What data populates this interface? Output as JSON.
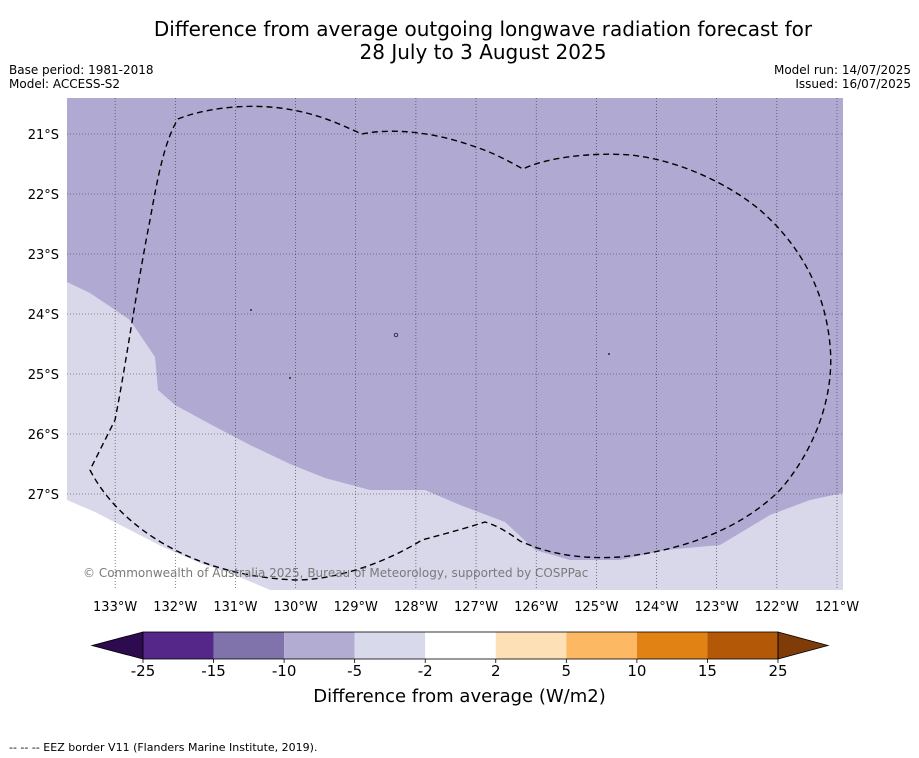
{
  "title_line1": "Difference from average outgoing longwave radiation forecast for",
  "title_line2": "28 July to 3 August 2025",
  "meta_left": {
    "base_period": "Base period: 1981-2018",
    "model": "Model: ACCESS-S2"
  },
  "meta_right": {
    "model_run": "Model run: 14/07/2025",
    "issued": "Issued: 16/07/2025"
  },
  "map": {
    "lon_range": [
      -133.8,
      -120.9
    ],
    "lat_range": [
      -28.6,
      -20.4
    ],
    "lon_ticks": [
      "133°W",
      "132°W",
      "131°W",
      "130°W",
      "129°W",
      "128°W",
      "127°W",
      "126°W",
      "125°W",
      "124°W",
      "123°W",
      "122°W",
      "121°W"
    ],
    "lat_ticks": [
      "21°S",
      "22°S",
      "23°S",
      "24°S",
      "25°S",
      "26°S",
      "27°S"
    ],
    "grid": true,
    "anomaly_fill_colors": {
      "minus_10_to_minus_5": "#b0aad2",
      "minus_5_to_minus_2": "#d8d8ea"
    },
    "eez_border_style": "dashed",
    "copyright": "© Commonwealth of Australia 2025, Bureau of Meteorology, supported by COSPPac"
  },
  "colorbar": {
    "ticks": [
      "-25",
      "-15",
      "-10",
      "-5",
      "-2",
      "2",
      "5",
      "10",
      "15",
      "25"
    ],
    "colors": [
      "#2d0b4e",
      "#542788",
      "#8073ac",
      "#b2abd2",
      "#d8daeb",
      "#ffffff",
      "#fee0b6",
      "#fdb863",
      "#e08214",
      "#b35806",
      "#7f3b08"
    ],
    "label": "Difference from average (W/m2)"
  },
  "footnote": "-- -- -- EEZ border V11 (Flanders Marine Institute, 2019)."
}
